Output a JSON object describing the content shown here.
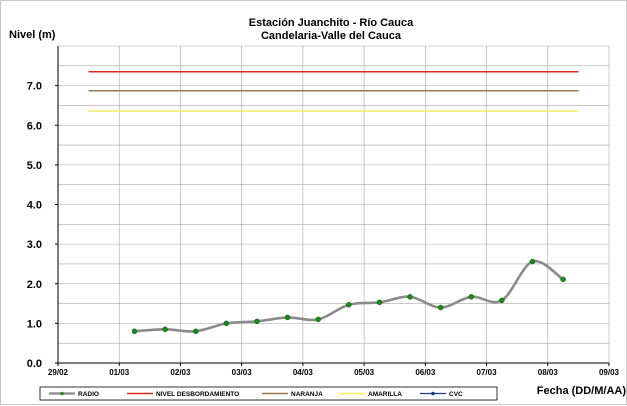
{
  "chart_data": {
    "type": "line",
    "title": "Estación Juanchito - Río Cauca",
    "subtitle": "Candelaria-Valle del Cauca",
    "ylabel": "Nivel (m)",
    "xlabel": "Fecha (DD/M/AA)",
    "ylim": [
      0,
      8
    ],
    "yticks": [
      "0.0",
      "1.0",
      "2.0",
      "3.0",
      "4.0",
      "5.0",
      "6.0",
      "7.0"
    ],
    "xlim": [
      0,
      9
    ],
    "xticks": [
      "29/02",
      "01/03",
      "02/03",
      "03/03",
      "04/03",
      "05/03",
      "06/03",
      "07/03",
      "08/03",
      "09/03"
    ],
    "grid": true,
    "legend_position": "bottom",
    "thresholds": [
      {
        "name": "NIVEL DESBORDAMIENTO",
        "value": 7.35,
        "color": "#dd2a1f"
      },
      {
        "name": "NARANJA",
        "value": 6.87,
        "color": "#9b7a4e"
      },
      {
        "name": "AMARILLA",
        "value": 6.36,
        "color": "#f5f064"
      }
    ],
    "series": [
      {
        "name": "RADIO",
        "color": "#8a8a8a",
        "marker_color": "#1a8a1a",
        "x": [
          1.25,
          1.75,
          2.25,
          2.75,
          3.25,
          3.75,
          4.25,
          4.75,
          5.25,
          5.75,
          6.25,
          6.75,
          7.25,
          7.75,
          8.25
        ],
        "y": [
          0.8,
          0.85,
          0.8,
          1.0,
          1.05,
          1.15,
          1.1,
          1.47,
          1.53,
          1.67,
          1.4,
          1.67,
          1.58,
          2.56,
          2.11
        ]
      },
      {
        "name": "CVC",
        "color": "#1a3a9a",
        "x": [],
        "y": []
      }
    ]
  }
}
